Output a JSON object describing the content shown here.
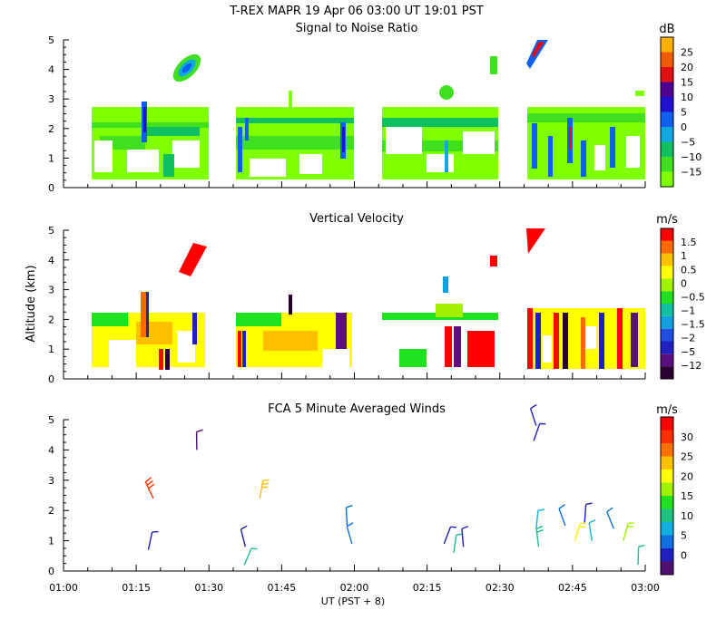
{
  "header": {
    "title": "T-REX  MAPR 19 Apr 06  03:00 UT  19:01  PST"
  },
  "time_axis": {
    "ticks": [
      "01:00",
      "01:15",
      "01:30",
      "01:45",
      "02:00",
      "02:15",
      "02:30",
      "02:45",
      "03:00"
    ],
    "label": "UT  (PST + 8)"
  },
  "colors": {
    "snr_scale": [
      "#80ff00",
      "#40e020",
      "#10c060",
      "#10a8e0",
      "#1060f0",
      "#2010d0",
      "#500090",
      "#e01010",
      "#f05a00",
      "#ffb000"
    ],
    "vel_scale": [
      "#2a0030",
      "#5a1080",
      "#2020c0",
      "#2050e0",
      "#10a0e0",
      "#10c0a0",
      "#20e020",
      "#a0f000",
      "#ffff00",
      "#ffc000",
      "#ff6a00",
      "#ff0000"
    ],
    "wind_scale": [
      "#501070",
      "#2020c0",
      "#1070e0",
      "#10b0e0",
      "#20c080",
      "#20e020",
      "#a0f000",
      "#ffff00",
      "#ffc000",
      "#ff7000",
      "#ff3000",
      "#ff0000"
    ]
  },
  "chart_data": [
    {
      "type": "heatmap",
      "title": "Signal to Noise Ratio",
      "ylabel": "",
      "ylim": [
        0,
        5
      ],
      "yticks": [
        "0",
        "1",
        "2",
        "3",
        "4",
        "5"
      ],
      "xlim": [
        0,
        120
      ],
      "colorbar_unit": "dB",
      "colorbar_labels": [
        "25",
        "20",
        "15",
        "10",
        "5",
        "0",
        "−5",
        "−10",
        "−15"
      ],
      "profile_blocks": [
        {
          "t0": 5,
          "t1": 29.5,
          "alt0": 0.3,
          "alt1": 2.65
        },
        {
          "t0": 35.5,
          "t1": 60.5,
          "alt0": 0.3,
          "alt1": 2.65
        },
        {
          "t0": 66.5,
          "t1": 89.5,
          "alt0": 0.3,
          "alt1": 2.65
        },
        {
          "t0": 95.5,
          "t1": 119.5,
          "alt0": 0.3,
          "alt1": 2.65
        }
      ],
      "features": [
        {
          "t": 25,
          "alt": 4.0,
          "note": "high cloud echo"
        },
        {
          "t": 98,
          "alt": 4.6,
          "note": "high cloud echo"
        }
      ]
    },
    {
      "type": "heatmap",
      "title": "Vertical Velocity",
      "ylabel": "Altitude  (km)",
      "ylim": [
        0,
        5
      ],
      "yticks": [
        "0",
        "1",
        "2",
        "3",
        "4",
        "5"
      ],
      "xlim": [
        0,
        120
      ],
      "colorbar_unit": "m/s",
      "colorbar_labels": [
        "1.5",
        "1",
        "0.5",
        "0",
        "−0.5",
        "−1",
        "−1.5",
        "−2",
        "−5",
        "−12"
      ],
      "features": [
        {
          "t": 25,
          "alt": 4.1,
          "note": "updraft"
        },
        {
          "t": 98,
          "alt": 4.7,
          "note": "updraft"
        }
      ]
    },
    {
      "type": "scatter",
      "title": "FCA 5 Minute Averaged Winds",
      "ylabel": "",
      "ylim": [
        0,
        5
      ],
      "yticks": [
        "0",
        "1",
        "2",
        "3",
        "4",
        "5"
      ],
      "xlim": [
        0,
        120
      ],
      "colorbar_unit": "m/s",
      "colorbar_labels": [
        "30",
        "25",
        "20",
        "15",
        "10",
        "5",
        "0"
      ],
      "barbs": [
        {
          "t": 18.5,
          "alt": 2.4,
          "speed": 25
        },
        {
          "t": 17.5,
          "alt": 0.7,
          "speed": 3
        },
        {
          "t": 27.5,
          "alt": 4.0,
          "speed": 2
        },
        {
          "t": 37.5,
          "alt": 0.8,
          "speed": 3
        },
        {
          "t": 37.3,
          "alt": 0.2,
          "speed": 10
        },
        {
          "t": 40.5,
          "alt": 2.4,
          "speed": 20
        },
        {
          "t": 58.5,
          "alt": 1.5,
          "speed": 5
        },
        {
          "t": 59.5,
          "alt": 0.9,
          "speed": 5
        },
        {
          "t": 78.5,
          "alt": 0.9,
          "speed": 4
        },
        {
          "t": 80.5,
          "alt": 0.6,
          "speed": 10
        },
        {
          "t": 82.5,
          "alt": 0.8,
          "speed": 3
        },
        {
          "t": 97.5,
          "alt": 4.8,
          "speed": 3
        },
        {
          "t": 97.0,
          "alt": 4.3,
          "speed": 3
        },
        {
          "t": 97.5,
          "alt": 1.4,
          "speed": 9
        },
        {
          "t": 98.0,
          "alt": 0.8,
          "speed": 12
        },
        {
          "t": 103.5,
          "alt": 1.5,
          "speed": 5
        },
        {
          "t": 105.5,
          "alt": 1.0,
          "speed": 18
        },
        {
          "t": 107.5,
          "alt": 1.6,
          "speed": 4
        },
        {
          "t": 109.0,
          "alt": 1.0,
          "speed": 8
        },
        {
          "t": 113.5,
          "alt": 1.4,
          "speed": 5
        },
        {
          "t": 115.5,
          "alt": 1.0,
          "speed": 17
        },
        {
          "t": 118.5,
          "alt": 0.2,
          "speed": 10
        }
      ]
    }
  ]
}
